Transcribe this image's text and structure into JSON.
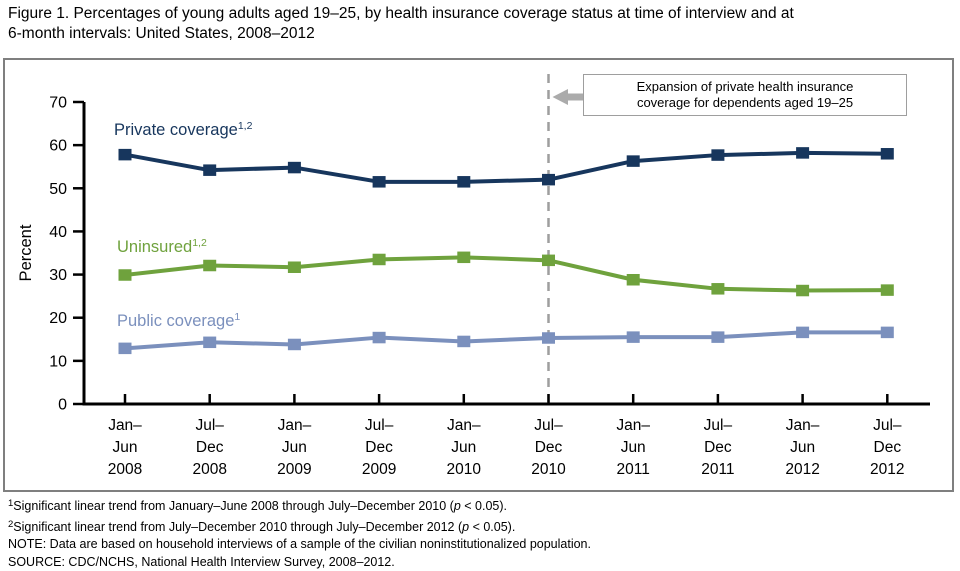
{
  "figure": {
    "title_lines": [
      "Figure 1. Percentages of young adults aged 19–25, by health insurance coverage status at time of interview and at",
      "6-month intervals: United States, 2008–2012"
    ]
  },
  "annotation": {
    "lines": [
      "Expansion of private health insurance",
      "coverage for dependents aged 19–25"
    ]
  },
  "series_labels": {
    "private": {
      "text": "Private coverage",
      "sup": "1,2"
    },
    "uninsured": {
      "text": "Uninsured",
      "sup": "1,2"
    },
    "public": {
      "text": "Public coverage",
      "sup": "1"
    }
  },
  "footnotes": [
    {
      "sup": "1",
      "before": "Significant linear trend from January–June 2008 through July–December 2010 (",
      "italic": "p",
      "after": " < 0.05)."
    },
    {
      "sup": "2",
      "before": "Significant linear trend from July–December 2010 through July–December 2012 (",
      "italic": "p",
      "after": " < 0.05)."
    },
    {
      "sup": "",
      "before": "NOTE: Data are based on household interviews of a sample of the civilian noninstitutionalized population.",
      "italic": "",
      "after": ""
    },
    {
      "sup": "",
      "before": "SOURCE: CDC/NCHS, National Health Interview Survey, 2008–2012.",
      "italic": "",
      "after": ""
    }
  ],
  "colors": {
    "private": "#17365D",
    "uninsured": "#6FA23D",
    "public": "#7B90BD",
    "axis": "#000000",
    "event_line": "#9E9E9E",
    "arrow": "#ABABAB",
    "frame_border": "#7F7F7F"
  },
  "chart_data": {
    "type": "line",
    "title": "Figure 1. Percentages of young adults aged 19–25, by health insurance coverage status at time of interview and at 6-month intervals: United States, 2008–2012",
    "ylabel": "Percent",
    "ylim": [
      0,
      70
    ],
    "yticks": [
      0,
      10,
      20,
      30,
      40,
      50,
      60,
      70
    ],
    "grid": false,
    "marker": "square",
    "legend_position": "inline-labels",
    "x_tick_labels": [
      [
        "Jan–",
        "Jun",
        "2008"
      ],
      [
        "Jul–",
        "Dec",
        "2008"
      ],
      [
        "Jan–",
        "Jun",
        "2009"
      ],
      [
        "Jul–",
        "Dec",
        "2009"
      ],
      [
        "Jan–",
        "Jun",
        "2010"
      ],
      [
        "Jul–",
        "Dec",
        "2010"
      ],
      [
        "Jan–",
        "Jun",
        "2011"
      ],
      [
        "Jul–",
        "Dec",
        "2011"
      ],
      [
        "Jan–",
        "Jun",
        "2012"
      ],
      [
        "Jul–",
        "Dec",
        "2012"
      ]
    ],
    "series": [
      {
        "name": "Private coverage",
        "superscript": "1,2",
        "color": "#17365D",
        "values": [
          57.8,
          54.2,
          54.8,
          51.5,
          51.5,
          52.0,
          56.3,
          57.7,
          58.2,
          58.0
        ]
      },
      {
        "name": "Uninsured",
        "superscript": "1,2",
        "color": "#6FA23D",
        "values": [
          29.9,
          32.1,
          31.7,
          33.5,
          34.0,
          33.3,
          28.8,
          26.7,
          26.3,
          26.4
        ]
      },
      {
        "name": "Public coverage",
        "superscript": "1",
        "color": "#7B90BD",
        "values": [
          12.9,
          14.3,
          13.8,
          15.4,
          14.5,
          15.3,
          15.5,
          15.5,
          16.6,
          16.6
        ]
      }
    ],
    "event_line": {
      "at_category_index": 5,
      "label": "Expansion of private health insurance coverage for dependents aged 19–25"
    }
  }
}
